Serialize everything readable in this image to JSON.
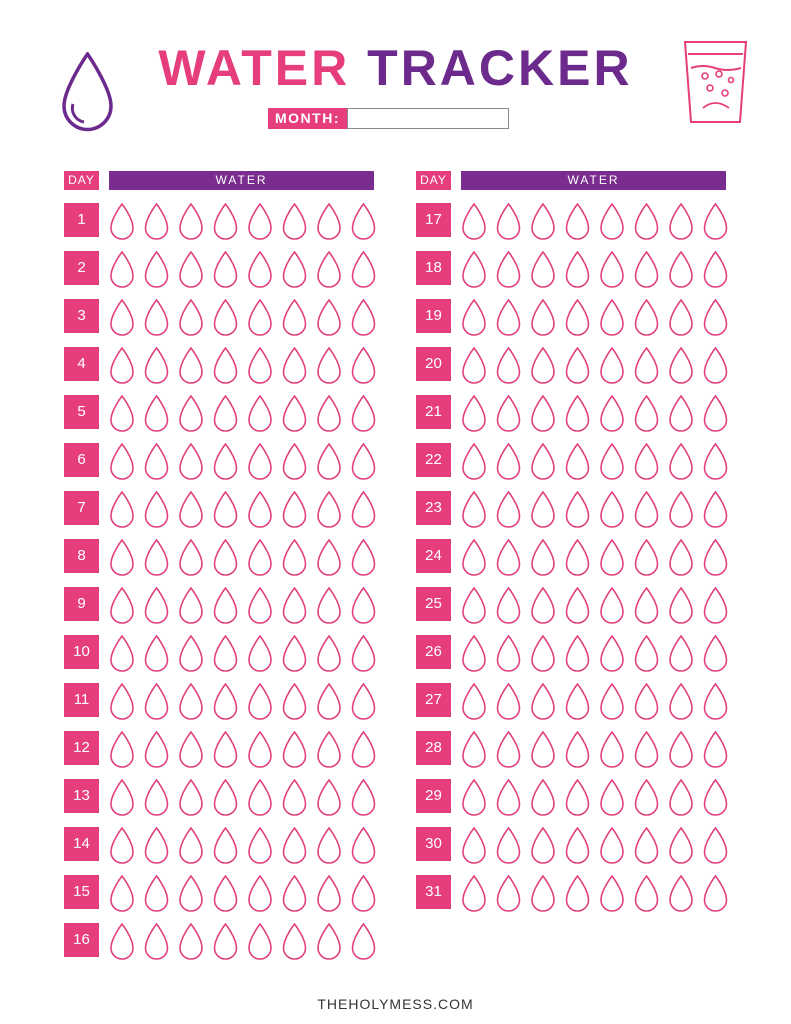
{
  "header": {
    "title_part1": "WATER",
    "title_part2": "TRACKER",
    "month_label": "MONTH:"
  },
  "table": {
    "day_header": "DAY",
    "water_header": "WATER",
    "drops_per_day": 8
  },
  "days_left": [
    "1",
    "2",
    "3",
    "4",
    "5",
    "6",
    "7",
    "8",
    "9",
    "10",
    "11",
    "12",
    "13",
    "14",
    "15",
    "16"
  ],
  "days_right": [
    "17",
    "18",
    "19",
    "20",
    "21",
    "22",
    "23",
    "24",
    "25",
    "26",
    "27",
    "28",
    "29",
    "30",
    "31"
  ],
  "footer": "THEHOLYMESS.COM",
  "colors": {
    "pink": "#e63e7c",
    "purple": "#7a2d8f",
    "drop_stroke": "#e0407f"
  },
  "icons": {
    "left_logo": "water-drop-icon",
    "right_logo": "water-glass-icon"
  }
}
